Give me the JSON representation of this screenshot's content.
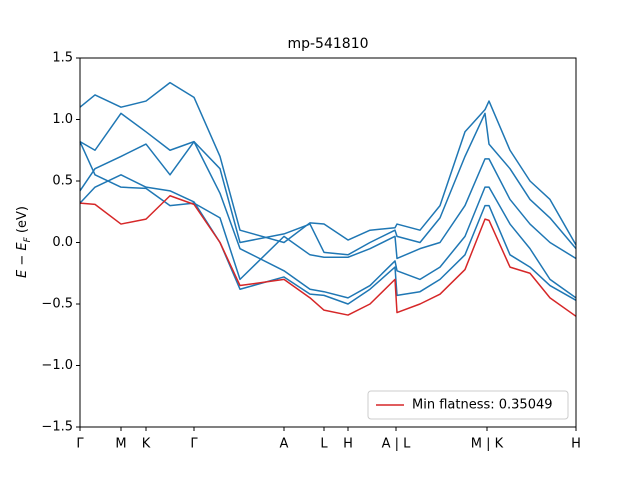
{
  "chart_data": {
    "type": "line",
    "title": "mp-541810",
    "ylabel": {
      "main": "E − E",
      "sub": "F",
      "unit": " (eV)"
    },
    "x": [
      0,
      15,
      41,
      66,
      90,
      114,
      140,
      160,
      204,
      230,
      244,
      268,
      290,
      315,
      317,
      340,
      360,
      385,
      405,
      409,
      430,
      450,
      470,
      496
    ],
    "xlim": [
      0,
      496
    ],
    "xticks": [
      {
        "value": 0,
        "label": "Γ"
      },
      {
        "value": 41,
        "label": "M"
      },
      {
        "value": 66,
        "label": "K"
      },
      {
        "value": 114,
        "label": "Γ"
      },
      {
        "value": 204,
        "label": "A"
      },
      {
        "value": 244,
        "label": "L"
      },
      {
        "value": 268,
        "label": "H"
      },
      {
        "value": 316,
        "label": "A | L"
      },
      {
        "value": 407,
        "label": "M | K"
      },
      {
        "value": 496,
        "label": "H"
      }
    ],
    "ylim": [
      -1.5,
      1.5
    ],
    "yticks": [
      {
        "value": -1.5,
        "label": "−1.5"
      },
      {
        "value": -1.0,
        "label": "−1.0"
      },
      {
        "value": -0.5,
        "label": "−0.5"
      },
      {
        "value": 0,
        "label": "0.0"
      },
      {
        "value": 0.5,
        "label": "0.5"
      },
      {
        "value": 1.0,
        "label": "1.0"
      },
      {
        "value": 1.5,
        "label": "1.5"
      }
    ],
    "legend": "lower right",
    "series": [
      {
        "color": "#1f77b4",
        "values": [
          1.1,
          1.2,
          1.1,
          1.15,
          1.3,
          1.18,
          0.7,
          0.1,
          0.0,
          0.16,
          0.15,
          0.02,
          0.1,
          0.12,
          0.15,
          0.1,
          0.3,
          0.9,
          1.08,
          1.15,
          0.75,
          0.5,
          0.35,
          -0.02
        ]
      },
      {
        "color": "#1f77b4",
        "values": [
          0.82,
          0.75,
          1.05,
          0.9,
          0.75,
          0.82,
          0.6,
          0.0,
          0.07,
          0.15,
          -0.08,
          -0.1,
          0.0,
          0.1,
          0.05,
          0.0,
          0.2,
          0.7,
          1.05,
          0.8,
          0.6,
          0.35,
          0.2,
          -0.05
        ]
      },
      {
        "color": "#1f77b4",
        "values": [
          0.82,
          0.55,
          0.45,
          0.44,
          0.3,
          0.32,
          0.2,
          -0.3,
          0.05,
          -0.1,
          -0.12,
          -0.12,
          -0.05,
          0.05,
          -0.13,
          -0.05,
          0.0,
          0.3,
          0.68,
          0.68,
          0.35,
          0.15,
          0.0,
          -0.13
        ]
      },
      {
        "color": "#1f77b4",
        "values": [
          0.42,
          0.6,
          0.7,
          0.8,
          0.55,
          0.82,
          0.4,
          -0.05,
          -0.23,
          -0.38,
          -0.4,
          -0.45,
          -0.35,
          -0.15,
          -0.23,
          -0.3,
          -0.2,
          0.05,
          0.45,
          0.45,
          0.15,
          -0.05,
          -0.3,
          -0.45
        ]
      },
      {
        "color": "#1f77b4",
        "values": [
          0.32,
          0.45,
          0.55,
          0.45,
          0.42,
          0.33,
          0.0,
          -0.38,
          -0.28,
          -0.42,
          -0.43,
          -0.5,
          -0.38,
          -0.2,
          -0.43,
          -0.4,
          -0.3,
          -0.1,
          0.3,
          0.3,
          -0.1,
          -0.2,
          -0.35,
          -0.47
        ]
      },
      {
        "name": "Min flatness: 0.35049",
        "color": "#d62728",
        "values": [
          0.32,
          0.31,
          0.15,
          0.19,
          0.38,
          0.31,
          0.0,
          -0.35,
          -0.3,
          -0.45,
          -0.55,
          -0.59,
          -0.5,
          -0.3,
          -0.57,
          -0.5,
          -0.42,
          -0.22,
          0.19,
          0.18,
          -0.2,
          -0.25,
          -0.45,
          -0.6
        ]
      }
    ]
  }
}
